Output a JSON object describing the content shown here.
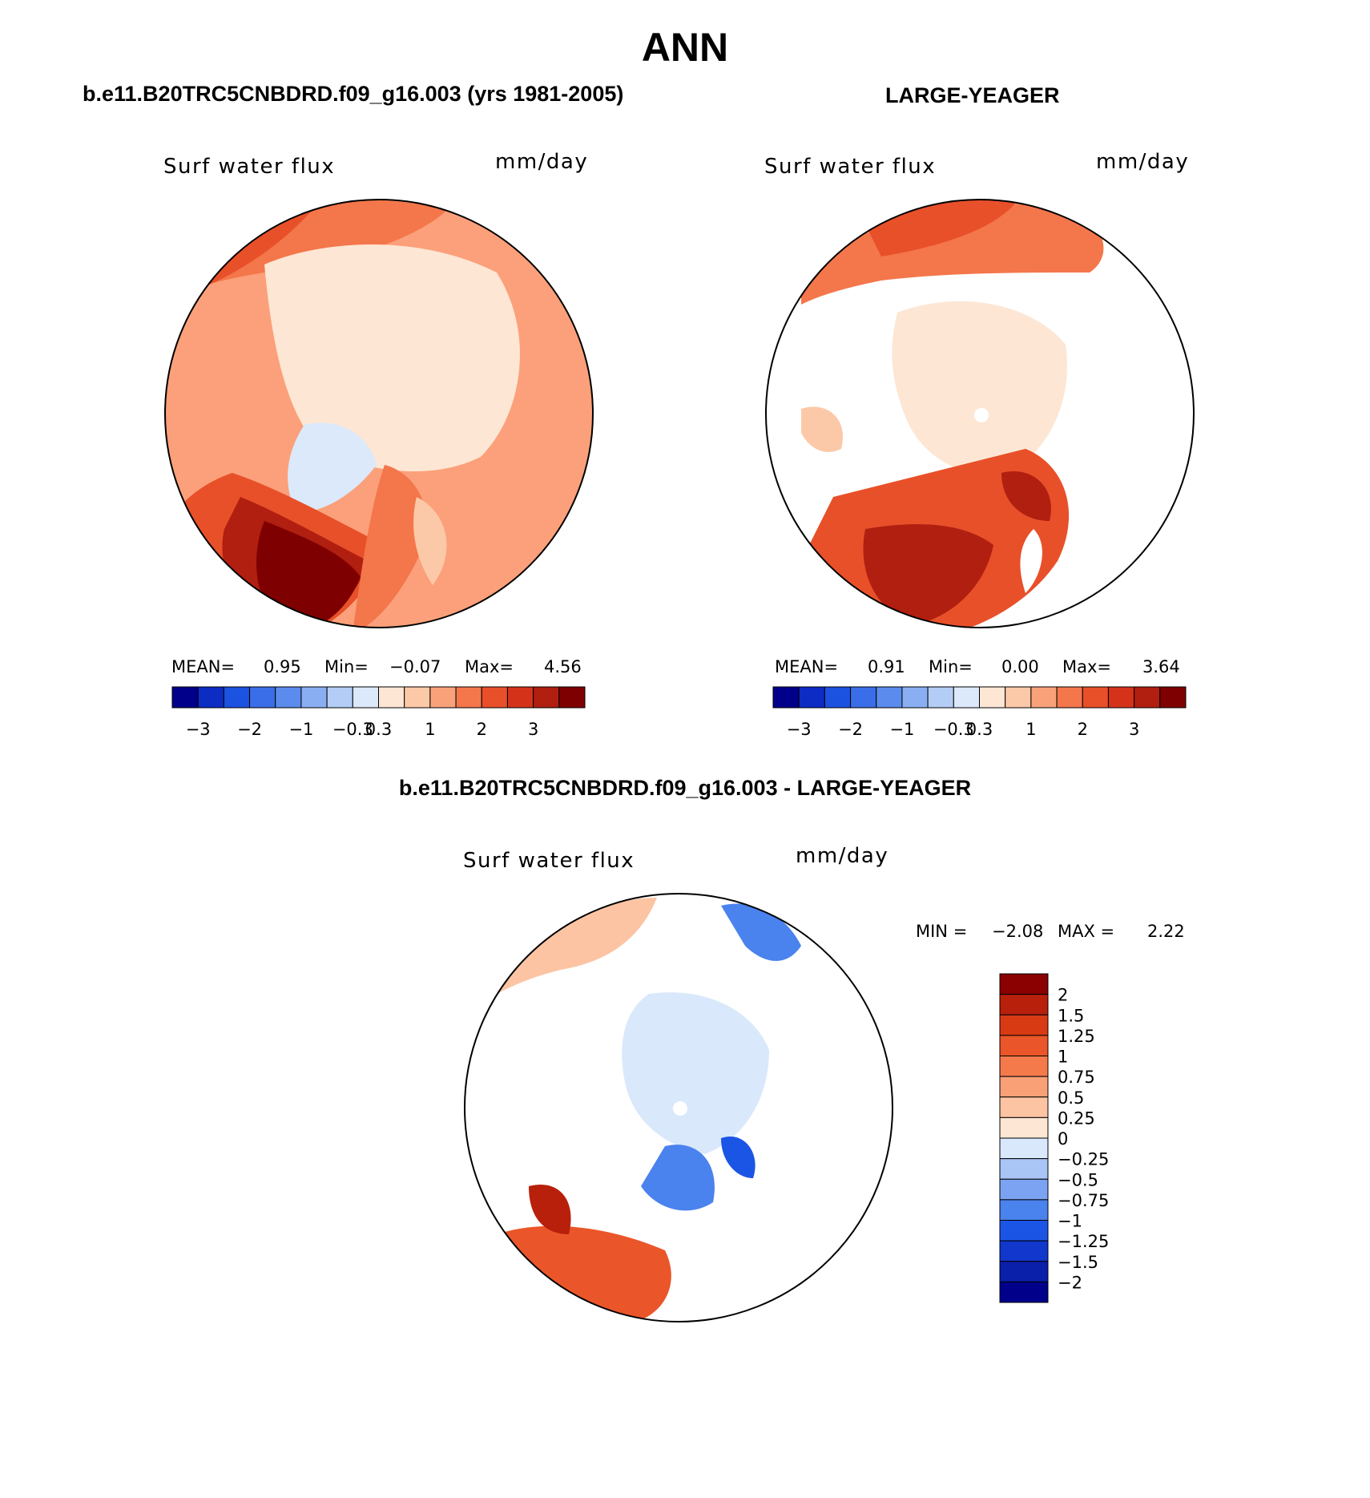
{
  "title": "ANN",
  "colors": {
    "scale": [
      "#00008b",
      "#0c2cc4",
      "#1b52e0",
      "#3a6ee8",
      "#5b8ced",
      "#8aaef2",
      "#b4cdf6",
      "#dbe9fb",
      "#fde6d4",
      "#fcc9a8",
      "#f9a27a",
      "#f4764b",
      "#e8502a",
      "#d4331a",
      "#b11f10",
      "#7f0000"
    ],
    "diff_scale": [
      "#00008b",
      "#0a1faa",
      "#1237cc",
      "#1b55e6",
      "#4a82ee",
      "#7ba3f2",
      "#a9c5f6",
      "#d9e8fb",
      "#fde6d4",
      "#fcc4a3",
      "#f9a077",
      "#f47a4c",
      "#ea5629",
      "#d83a14",
      "#b8200c",
      "#8b0000"
    ],
    "land": "#ffffff",
    "coast": "#000000"
  },
  "panels": [
    {
      "case": "b.e11.B20TRC5CNBDRD.f09_g16.003 (yrs 1981-2005)",
      "variable": "Surf water flux",
      "units": "mm/day",
      "stats": {
        "mean_label": "MEAN=",
        "mean": "0.95",
        "min_label": "Min=",
        "min": "−0.07",
        "max_label": "Max=",
        "max": "4.56"
      }
    },
    {
      "case": "LARGE-YEAGER",
      "variable": "Surf water flux",
      "units": "mm/day",
      "stats": {
        "mean_label": "MEAN=",
        "mean": "0.91",
        "min_label": "Min=",
        "min": "0.00",
        "max_label": "Max=",
        "max": "3.64"
      }
    },
    {
      "case": "b.e11.B20TRC5CNBDRD.f09_g16.003 - LARGE-YEAGER",
      "variable": "Surf water flux",
      "units": "mm/day",
      "stats": {
        "min_label": "MIN =",
        "min": "−2.08",
        "max_label": "MAX =",
        "max": "2.22"
      }
    }
  ],
  "colorbar_ticks": [
    "−3",
    "−2",
    "−1",
    "−0.3",
    "0.3",
    "1",
    "2",
    "3"
  ],
  "diff_colorbar_ticks": [
    "2",
    "1.5",
    "1.25",
    "1",
    "0.75",
    "0.5",
    "0.25",
    "0",
    "−0.25",
    "−0.5",
    "−0.75",
    "−1",
    "−1.25",
    "−1.5",
    "−2"
  ]
}
